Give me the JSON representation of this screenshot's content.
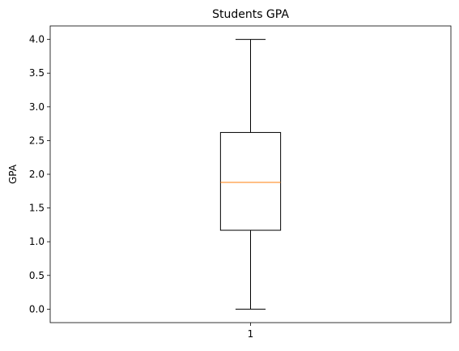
{
  "chart_data": {
    "type": "box",
    "title": "Students GPA",
    "xlabel": "",
    "ylabel": "GPA",
    "categories": [
      "1"
    ],
    "boxes": [
      {
        "category": "1",
        "min": 0.0,
        "q1": 1.17,
        "median": 1.88,
        "q3": 2.62,
        "max": 4.0
      }
    ],
    "y_ticks": [
      0.0,
      0.5,
      1.0,
      1.5,
      2.0,
      2.5,
      3.0,
      3.5,
      4.0
    ],
    "y_tick_labels": [
      "0.0",
      "0.5",
      "1.0",
      "1.5",
      "2.0",
      "2.5",
      "3.0",
      "3.5",
      "4.0"
    ],
    "ylim": [
      -0.2,
      4.2
    ],
    "xlim": [
      0.5,
      1.5
    ],
    "grid": false,
    "colors": {
      "box": "#000000",
      "median": "#ff7f0e",
      "whisker": "#000000"
    }
  }
}
